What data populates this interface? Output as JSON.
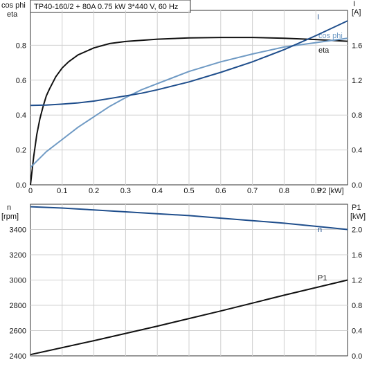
{
  "chart_data": [
    {
      "type": "line",
      "title": "TP40-160/2 + 80A   0.75 kW   3*440 V, 60 Hz",
      "xlabel": "P2 [kW]",
      "xlim": [
        0,
        1.0
      ],
      "xticks": [
        "0",
        "0.1",
        "0.2",
        "0.3",
        "0.4",
        "0.5",
        "0.6",
        "0.7",
        "0.8",
        "0.9"
      ],
      "y_left": {
        "label_line1": "cos phi",
        "label_line2": "eta",
        "lim": [
          0,
          1.0
        ],
        "ticks": [
          "0.0",
          "0.2",
          "0.4",
          "0.6",
          "0.8"
        ]
      },
      "y_right": {
        "label_line1": "I",
        "label_line2": "[A]",
        "lim": [
          0,
          2.0
        ],
        "ticks": [
          "0.0",
          "0.4",
          "0.8",
          "1.2",
          "1.6"
        ]
      },
      "grid": true,
      "series": [
        {
          "name": "eta",
          "axis": "left",
          "color": "#111111",
          "x": [
            0.0,
            0.01,
            0.02,
            0.03,
            0.04,
            0.05,
            0.06,
            0.08,
            0.1,
            0.12,
            0.15,
            0.2,
            0.25,
            0.3,
            0.4,
            0.5,
            0.6,
            0.7,
            0.8,
            0.9,
            1.0
          ],
          "y": [
            0.0,
            0.16,
            0.29,
            0.38,
            0.45,
            0.51,
            0.55,
            0.62,
            0.67,
            0.705,
            0.745,
            0.785,
            0.81,
            0.822,
            0.835,
            0.842,
            0.845,
            0.845,
            0.84,
            0.833,
            0.823
          ]
        },
        {
          "name": "cos phi",
          "axis": "left",
          "color": "#6f9ac4",
          "x": [
            0.0,
            0.05,
            0.1,
            0.15,
            0.2,
            0.25,
            0.3,
            0.35,
            0.4,
            0.5,
            0.6,
            0.7,
            0.8,
            0.9,
            1.0
          ],
          "y": [
            0.1,
            0.19,
            0.26,
            0.33,
            0.39,
            0.45,
            0.5,
            0.545,
            0.58,
            0.65,
            0.705,
            0.75,
            0.79,
            0.815,
            0.84
          ]
        },
        {
          "name": "I",
          "axis": "right",
          "color": "#1f4e8c",
          "x": [
            0.0,
            0.05,
            0.1,
            0.15,
            0.2,
            0.25,
            0.3,
            0.35,
            0.4,
            0.5,
            0.6,
            0.7,
            0.8,
            0.9,
            1.0
          ],
          "y": [
            0.91,
            0.915,
            0.925,
            0.94,
            0.96,
            0.99,
            1.02,
            1.05,
            1.09,
            1.18,
            1.29,
            1.41,
            1.55,
            1.71,
            1.88
          ]
        }
      ]
    },
    {
      "type": "line",
      "xlim": [
        0,
        1.0
      ],
      "y_left": {
        "label_line1": "n",
        "label_line2": "[rpm]",
        "lim": [
          2400,
          3600
        ],
        "ticks": [
          "2400",
          "2600",
          "2800",
          "3000",
          "3200",
          "3400"
        ]
      },
      "y_right": {
        "label_line1": "P1",
        "label_line2": "[kW]",
        "lim": [
          0,
          2.4
        ],
        "ticks": [
          "0.0",
          "0.4",
          "0.8",
          "1.2",
          "1.6",
          "2.0"
        ]
      },
      "grid": true,
      "series": [
        {
          "name": "n",
          "axis": "left",
          "color": "#1f4e8c",
          "x": [
            0.0,
            0.1,
            0.2,
            0.3,
            0.4,
            0.5,
            0.6,
            0.7,
            0.8,
            0.9,
            1.0
          ],
          "y": [
            3580,
            3570,
            3555,
            3540,
            3525,
            3510,
            3490,
            3470,
            3450,
            3425,
            3400
          ]
        },
        {
          "name": "P1",
          "axis": "right",
          "color": "#111111",
          "x": [
            0.0,
            0.2,
            0.4,
            0.6,
            0.8,
            1.0
          ],
          "y": [
            0.02,
            0.24,
            0.47,
            0.71,
            0.96,
            1.2
          ]
        }
      ]
    }
  ]
}
